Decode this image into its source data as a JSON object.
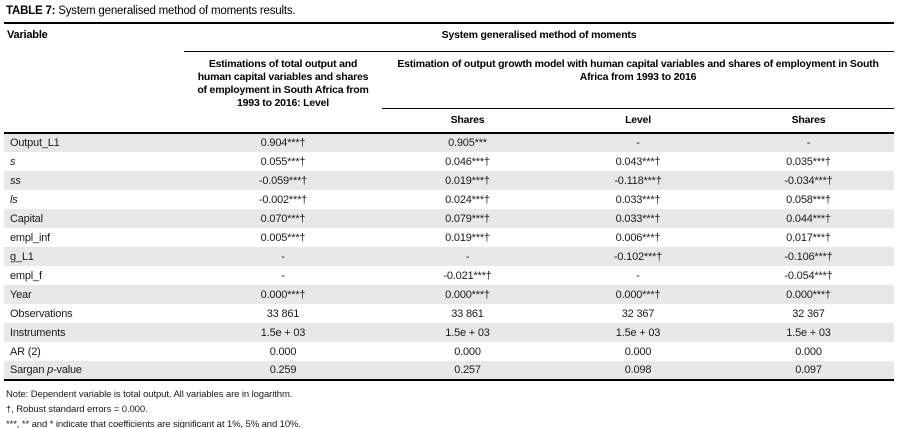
{
  "title": {
    "bold": "TABLE 7:",
    "rest": " System generalised method of moments results."
  },
  "colors": {
    "row_stripe": "#e8e8e8",
    "border": "#000000"
  },
  "header": {
    "variable_label": "Variable",
    "group_label": "System generalised method of moments",
    "col2_label": "Estimations of total output and human capital variables and shares of employment in South Africa from 1993 to 2016: Level",
    "subgroup_label": "Estimation of output growth model with human capital variables and shares of employment in South Africa from 1993 to 2016",
    "subcols": [
      "Shares",
      "Level",
      "Shares"
    ]
  },
  "rows": [
    {
      "variable": "Output_L1",
      "italic": false,
      "values": [
        "0.904***†",
        "0.905***",
        "-",
        "-"
      ]
    },
    {
      "variable": "s",
      "italic": true,
      "values": [
        "0.055***†",
        "0.046***†",
        "0.043***†",
        "0.035***†"
      ]
    },
    {
      "variable": "ss",
      "italic": true,
      "values": [
        "-0.059***†",
        "0.019***†",
        "-0.118***†",
        "-0.034***†"
      ]
    },
    {
      "variable": "ls",
      "italic": true,
      "values": [
        "-0.002***†",
        "0.024***†",
        "0.033***†",
        "0.058***†"
      ]
    },
    {
      "variable": "Capital",
      "italic": false,
      "values": [
        "0.070***†",
        "0.079***†",
        "0.033***†",
        "0.044***†"
      ]
    },
    {
      "variable": "empl_inf",
      "italic": false,
      "values": [
        "0.005***†",
        "0.019***†",
        "0.006***†",
        "0.017***†"
      ]
    },
    {
      "variable": "g_L1",
      "italic": false,
      "values": [
        "-",
        "-",
        "-0.102***†",
        "-0.106***†"
      ]
    },
    {
      "variable": "empl_f",
      "italic": false,
      "values": [
        "-",
        "-0.021***†",
        "-",
        "-0.054***†"
      ]
    },
    {
      "variable": "Year",
      "italic": false,
      "values": [
        "0.000***†",
        "0.000***†",
        "0.000***†",
        "0.000***†"
      ]
    },
    {
      "variable": "Observations",
      "italic": false,
      "values": [
        "33 861",
        "33 861",
        "32 367",
        "32 367"
      ]
    },
    {
      "variable": "Instruments",
      "italic": false,
      "values": [
        "1.5e + 03",
        "1.5e + 03",
        "1.5e + 03",
        "1.5e + 03"
      ]
    },
    {
      "variable": "AR (2)",
      "italic": false,
      "values": [
        "0.000",
        "0.000",
        "0.000",
        "0.000"
      ]
    },
    {
      "variable": "Sargan p-value",
      "italic": false,
      "parts": [
        {
          "text": "Sargan ",
          "italic": false
        },
        {
          "text": "p",
          "italic": true
        },
        {
          "text": "-value",
          "italic": false
        }
      ],
      "values": [
        "0.259",
        "0.257",
        "0.098",
        "0.097"
      ]
    }
  ],
  "notes": [
    "Note: Dependent variable is total output. All variables are in logarithm.",
    "†, Robust standard errors = 0.000.",
    "***, ** and * indicate that coefficients are significant at 1%, 5% and 10%."
  ]
}
